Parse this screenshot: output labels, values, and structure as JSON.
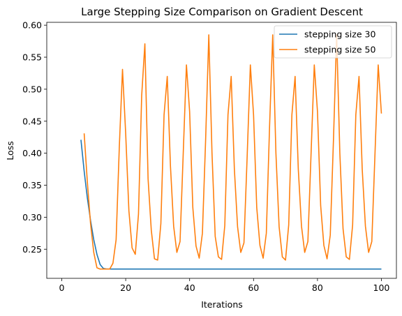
{
  "chart_data": {
    "type": "line",
    "title": "Large Stepping Size Comparison on Gradient Descent",
    "xlabel": "Iterations",
    "ylabel": "Loss",
    "xlim": [
      -4.7,
      104.7
    ],
    "ylim": [
      0.2045,
      0.6045
    ],
    "xticks": [
      0,
      20,
      40,
      60,
      80,
      100
    ],
    "yticks": [
      0.25,
      0.3,
      0.35,
      0.4,
      0.45,
      0.5,
      0.55,
      0.6
    ],
    "ytick_labels": [
      "0.25",
      "0.30",
      "0.35",
      "0.40",
      "0.45",
      "0.50",
      "0.55",
      "0.60"
    ],
    "grid": false,
    "legend_position": "top-right",
    "series": [
      {
        "name": "stepping size 30",
        "color": "#1f77b4",
        "x": [
          6,
          7,
          8,
          9,
          10,
          11,
          12,
          13,
          14,
          15,
          20,
          30,
          40,
          50,
          60,
          70,
          80,
          90,
          100
        ],
        "y": [
          0.421,
          0.372,
          0.33,
          0.295,
          0.265,
          0.242,
          0.226,
          0.22,
          0.219,
          0.219,
          0.219,
          0.219,
          0.219,
          0.219,
          0.219,
          0.219,
          0.219,
          0.219,
          0.219
        ]
      },
      {
        "name": "stepping size 50",
        "color": "#ff7f0e",
        "x": [
          7,
          8,
          9,
          10,
          11,
          12,
          13,
          14,
          15,
          16,
          17,
          18,
          19,
          20,
          21,
          22,
          23,
          24,
          25,
          26,
          27,
          28,
          29,
          30,
          31,
          32,
          33,
          34,
          35,
          36,
          37,
          38,
          39,
          40,
          41,
          42,
          43,
          44,
          45,
          46,
          47,
          48,
          49,
          50,
          51,
          52,
          53,
          54,
          55,
          56,
          57,
          58,
          59,
          60,
          61,
          62,
          63,
          64,
          65,
          66,
          67,
          68,
          69,
          70,
          71,
          72,
          73,
          74,
          75,
          76,
          77,
          78,
          79,
          80,
          81,
          82,
          83,
          84,
          85,
          86,
          87,
          88,
          89,
          90,
          91,
          92,
          93,
          94,
          95,
          96,
          97,
          98,
          99,
          100
        ],
        "y": [
          0.431,
          0.355,
          0.29,
          0.245,
          0.221,
          0.219,
          0.219,
          0.219,
          0.219,
          0.228,
          0.265,
          0.41,
          0.531,
          0.43,
          0.31,
          0.252,
          0.242,
          0.305,
          0.49,
          0.571,
          0.36,
          0.28,
          0.235,
          0.233,
          0.29,
          0.46,
          0.52,
          0.38,
          0.286,
          0.245,
          0.262,
          0.4,
          0.538,
          0.465,
          0.315,
          0.255,
          0.236,
          0.275,
          0.42,
          0.585,
          0.4,
          0.27,
          0.238,
          0.234,
          0.287,
          0.46,
          0.52,
          0.375,
          0.285,
          0.245,
          0.26,
          0.395,
          0.538,
          0.46,
          0.315,
          0.256,
          0.236,
          0.275,
          0.44,
          0.585,
          0.4,
          0.285,
          0.238,
          0.233,
          0.288,
          0.46,
          0.52,
          0.375,
          0.286,
          0.245,
          0.262,
          0.4,
          0.538,
          0.465,
          0.318,
          0.256,
          0.235,
          0.272,
          0.42,
          0.585,
          0.4,
          0.282,
          0.238,
          0.234,
          0.288,
          0.46,
          0.52,
          0.375,
          0.286,
          0.245,
          0.262,
          0.4,
          0.538,
          0.462
        ]
      }
    ]
  }
}
